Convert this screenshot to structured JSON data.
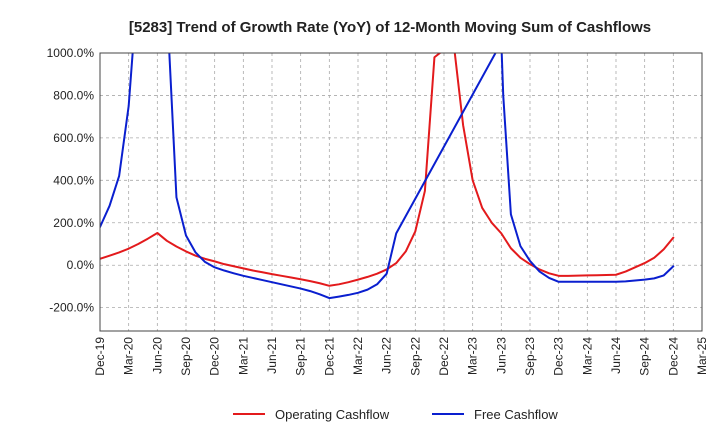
{
  "chart_data": {
    "type": "line",
    "title": "[5283]  Trend of Growth Rate (YoY) of 12-Month Moving Sum of Cashflows",
    "xlabel": "",
    "ylabel": "",
    "ylim": [
      -310,
      1000
    ],
    "y_ticks": [
      1000,
      800,
      600,
      400,
      200,
      0,
      -200
    ],
    "y_tick_labels": [
      "1000.0%",
      "800.0%",
      "600.0%",
      "400.0%",
      "200.0%",
      "0.0%",
      "-200.0%"
    ],
    "x_ticks": [
      "Dec-19",
      "Mar-20",
      "Jun-20",
      "Sep-20",
      "Dec-20",
      "Mar-21",
      "Jun-21",
      "Sep-21",
      "Dec-21",
      "Mar-22",
      "Jun-22",
      "Sep-22",
      "Dec-22",
      "Mar-23",
      "Jun-23",
      "Sep-23",
      "Dec-23",
      "Mar-24",
      "Jun-24",
      "Sep-24",
      "Dec-24",
      "Mar-25"
    ],
    "grid": true,
    "legend_position": "bottom",
    "series": [
      {
        "name": "Operating Cashflow",
        "color": "#e31a1c",
        "points": [
          [
            0,
            30
          ],
          [
            1,
            45
          ],
          [
            2,
            60
          ],
          [
            3,
            78
          ],
          [
            4,
            100
          ],
          [
            5,
            125
          ],
          [
            6,
            152
          ],
          [
            7,
            115
          ],
          [
            8,
            88
          ],
          [
            9,
            65
          ],
          [
            10,
            45
          ],
          [
            11,
            30
          ],
          [
            12,
            18
          ],
          [
            13,
            5
          ],
          [
            14,
            -5
          ],
          [
            15,
            -15
          ],
          [
            16,
            -25
          ],
          [
            17,
            -33
          ],
          [
            18,
            -42
          ],
          [
            19,
            -50
          ],
          [
            20,
            -58
          ],
          [
            21,
            -66
          ],
          [
            22,
            -75
          ],
          [
            23,
            -85
          ],
          [
            24,
            -97
          ],
          [
            25,
            -90
          ],
          [
            26,
            -80
          ],
          [
            27,
            -68
          ],
          [
            28,
            -55
          ],
          [
            29,
            -40
          ],
          [
            30,
            -20
          ],
          [
            31,
            10
          ],
          [
            32,
            65
          ],
          [
            33,
            160
          ],
          [
            34,
            350
          ],
          [
            35,
            980
          ],
          [
            37,
            1050
          ],
          [
            38,
            660
          ],
          [
            39,
            400
          ],
          [
            40,
            270
          ],
          [
            41,
            200
          ],
          [
            42,
            150
          ],
          [
            43,
            80
          ],
          [
            44,
            35
          ],
          [
            45,
            5
          ],
          [
            46,
            -20
          ],
          [
            47,
            -38
          ],
          [
            48,
            -50
          ],
          [
            49,
            -50
          ],
          [
            50,
            -49
          ],
          [
            51,
            -48
          ],
          [
            52,
            -47
          ],
          [
            53,
            -46
          ],
          [
            54,
            -45
          ],
          [
            55,
            -30
          ],
          [
            56,
            -10
          ],
          [
            57,
            10
          ],
          [
            58,
            35
          ],
          [
            59,
            75
          ],
          [
            60,
            130
          ]
        ]
      },
      {
        "name": "Free Cashflow",
        "color": "#0a1fcf",
        "points": [
          [
            0,
            180
          ],
          [
            1,
            280
          ],
          [
            2,
            420
          ],
          [
            3,
            750
          ],
          [
            3.5,
            1050
          ],
          [
            7.2,
            1050
          ],
          [
            8,
            320
          ],
          [
            9,
            140
          ],
          [
            10,
            60
          ],
          [
            11,
            15
          ],
          [
            12,
            -10
          ],
          [
            13,
            -25
          ],
          [
            14,
            -38
          ],
          [
            15,
            -50
          ],
          [
            16,
            -60
          ],
          [
            17,
            -70
          ],
          [
            18,
            -80
          ],
          [
            19,
            -90
          ],
          [
            20,
            -100
          ],
          [
            21,
            -110
          ],
          [
            22,
            -122
          ],
          [
            23,
            -137
          ],
          [
            24,
            -155
          ],
          [
            25,
            -148
          ],
          [
            26,
            -140
          ],
          [
            27,
            -130
          ],
          [
            28,
            -115
          ],
          [
            29,
            -90
          ],
          [
            30,
            -40
          ],
          [
            31,
            150
          ],
          [
            42,
            1050
          ],
          [
            42.2,
            800
          ],
          [
            43,
            240
          ],
          [
            44,
            90
          ],
          [
            45,
            20
          ],
          [
            46,
            -30
          ],
          [
            47,
            -60
          ],
          [
            48,
            -78
          ],
          [
            49,
            -78
          ],
          [
            50,
            -78
          ],
          [
            51,
            -78
          ],
          [
            52,
            -78
          ],
          [
            53,
            -78
          ],
          [
            54,
            -78
          ],
          [
            55,
            -76
          ],
          [
            56,
            -72
          ],
          [
            57,
            -68
          ],
          [
            58,
            -62
          ],
          [
            59,
            -48
          ],
          [
            60,
            -5
          ]
        ]
      }
    ]
  }
}
